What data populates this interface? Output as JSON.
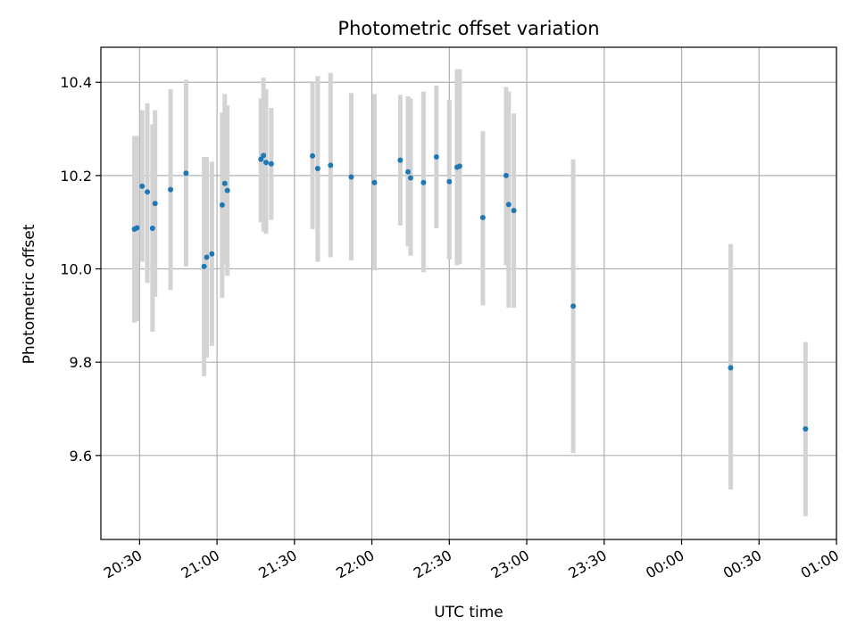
{
  "chart_data": {
    "type": "scatter",
    "title": "Photometric offset variation",
    "xlabel": "UTC time",
    "ylabel": "Photometric offset",
    "x_is_time": true,
    "xlim": [
      "2023-01-01 20:15",
      "2023-01-02 01:00"
    ],
    "ylim": [
      9.42,
      10.475
    ],
    "x_ticks": [
      {
        "t": "2023-01-01 20:30",
        "label": "20:30"
      },
      {
        "t": "2023-01-01 21:00",
        "label": "21:00"
      },
      {
        "t": "2023-01-01 21:30",
        "label": "21:30"
      },
      {
        "t": "2023-01-01 22:00",
        "label": "22:00"
      },
      {
        "t": "2023-01-01 22:30",
        "label": "22:30"
      },
      {
        "t": "2023-01-01 23:00",
        "label": "23:00"
      },
      {
        "t": "2023-01-01 23:30",
        "label": "23:30"
      },
      {
        "t": "2023-01-02 00:00",
        "label": "00:00"
      },
      {
        "t": "2023-01-02 00:30",
        "label": "00:30"
      },
      {
        "t": "2023-01-02 01:00",
        "label": "01:00"
      }
    ],
    "y_ticks": [
      {
        "v": 9.6,
        "label": "9.6"
      },
      {
        "v": 9.8,
        "label": "9.8"
      },
      {
        "v": 10.0,
        "label": "10.0"
      },
      {
        "v": 10.2,
        "label": "10.2"
      },
      {
        "v": 10.4,
        "label": "10.4"
      }
    ],
    "grid": true,
    "colors": {
      "point": "#1f77b4",
      "errorbar": "#d3d3d3",
      "grid": "#b0b0b0"
    },
    "series": [
      {
        "points": [
          {
            "t": "2023-01-01 20:28",
            "y": 10.085,
            "ymin": 9.885,
            "ymax": 10.285
          },
          {
            "t": "2023-01-01 20:29",
            "y": 10.088,
            "ymin": 9.888,
            "ymax": 10.285
          },
          {
            "t": "2023-01-01 20:31",
            "y": 10.177,
            "ymin": 10.015,
            "ymax": 10.34
          },
          {
            "t": "2023-01-01 20:33",
            "y": 10.165,
            "ymin": 9.97,
            "ymax": 10.355
          },
          {
            "t": "2023-01-01 20:35",
            "y": 10.087,
            "ymin": 9.865,
            "ymax": 10.31
          },
          {
            "t": "2023-01-01 20:36",
            "y": 10.14,
            "ymin": 9.94,
            "ymax": 10.34
          },
          {
            "t": "2023-01-01 20:42",
            "y": 10.17,
            "ymin": 9.955,
            "ymax": 10.385
          },
          {
            "t": "2023-01-01 20:48",
            "y": 10.205,
            "ymin": 10.005,
            "ymax": 10.405
          },
          {
            "t": "2023-01-01 20:55",
            "y": 10.005,
            "ymin": 9.77,
            "ymax": 10.24
          },
          {
            "t": "2023-01-01 20:56",
            "y": 10.025,
            "ymin": 9.81,
            "ymax": 10.24
          },
          {
            "t": "2023-01-01 20:58",
            "y": 10.032,
            "ymin": 9.835,
            "ymax": 10.23
          },
          {
            "t": "2023-01-01 21:02",
            "y": 10.137,
            "ymin": 9.938,
            "ymax": 10.335
          },
          {
            "t": "2023-01-01 21:03",
            "y": 10.183,
            "ymin": 10.01,
            "ymax": 10.375
          },
          {
            "t": "2023-01-01 21:04",
            "y": 10.168,
            "ymin": 9.985,
            "ymax": 10.35
          },
          {
            "t": "2023-01-01 21:17",
            "y": 10.235,
            "ymin": 10.1,
            "ymax": 10.365
          },
          {
            "t": "2023-01-01 21:18",
            "y": 10.243,
            "ymin": 10.08,
            "ymax": 10.41
          },
          {
            "t": "2023-01-01 21:19",
            "y": 10.228,
            "ymin": 10.075,
            "ymax": 10.385
          },
          {
            "t": "2023-01-01 21:21",
            "y": 10.225,
            "ymin": 10.105,
            "ymax": 10.345
          },
          {
            "t": "2023-01-01 21:37",
            "y": 10.242,
            "ymin": 10.085,
            "ymax": 10.4
          },
          {
            "t": "2023-01-01 21:39",
            "y": 10.215,
            "ymin": 10.015,
            "ymax": 10.413
          },
          {
            "t": "2023-01-01 21:44",
            "y": 10.222,
            "ymin": 10.025,
            "ymax": 10.42
          },
          {
            "t": "2023-01-01 21:52",
            "y": 10.197,
            "ymin": 10.018,
            "ymax": 10.377
          },
          {
            "t": "2023-01-01 22:01",
            "y": 10.185,
            "ymin": 9.997,
            "ymax": 10.375
          },
          {
            "t": "2023-01-01 22:11",
            "y": 10.233,
            "ymin": 10.093,
            "ymax": 10.373
          },
          {
            "t": "2023-01-01 22:14",
            "y": 10.208,
            "ymin": 10.048,
            "ymax": 10.37
          },
          {
            "t": "2023-01-01 22:15",
            "y": 10.195,
            "ymin": 10.028,
            "ymax": 10.365
          },
          {
            "t": "2023-01-01 22:20",
            "y": 10.185,
            "ymin": 9.993,
            "ymax": 10.38
          },
          {
            "t": "2023-01-01 22:25",
            "y": 10.24,
            "ymin": 10.087,
            "ymax": 10.393
          },
          {
            "t": "2023-01-01 22:30",
            "y": 10.187,
            "ymin": 10.02,
            "ymax": 10.362
          },
          {
            "t": "2023-01-01 22:33",
            "y": 10.218,
            "ymin": 10.008,
            "ymax": 10.428
          },
          {
            "t": "2023-01-01 22:34",
            "y": 10.22,
            "ymin": 10.01,
            "ymax": 10.428
          },
          {
            "t": "2023-01-01 22:43",
            "y": 10.11,
            "ymin": 9.922,
            "ymax": 10.295
          },
          {
            "t": "2023-01-01 22:52",
            "y": 10.2,
            "ymin": 10.008,
            "ymax": 10.39
          },
          {
            "t": "2023-01-01 22:53",
            "y": 10.138,
            "ymin": 9.917,
            "ymax": 10.38
          },
          {
            "t": "2023-01-01 22:55",
            "y": 10.125,
            "ymin": 9.917,
            "ymax": 10.333
          },
          {
            "t": "2023-01-01 23:18",
            "y": 9.92,
            "ymin": 9.605,
            "ymax": 10.235
          },
          {
            "t": "2023-01-02 00:19",
            "y": 9.788,
            "ymin": 9.527,
            "ymax": 10.053
          },
          {
            "t": "2023-01-02 00:48",
            "y": 9.657,
            "ymin": 9.47,
            "ymax": 9.843
          }
        ]
      }
    ]
  }
}
